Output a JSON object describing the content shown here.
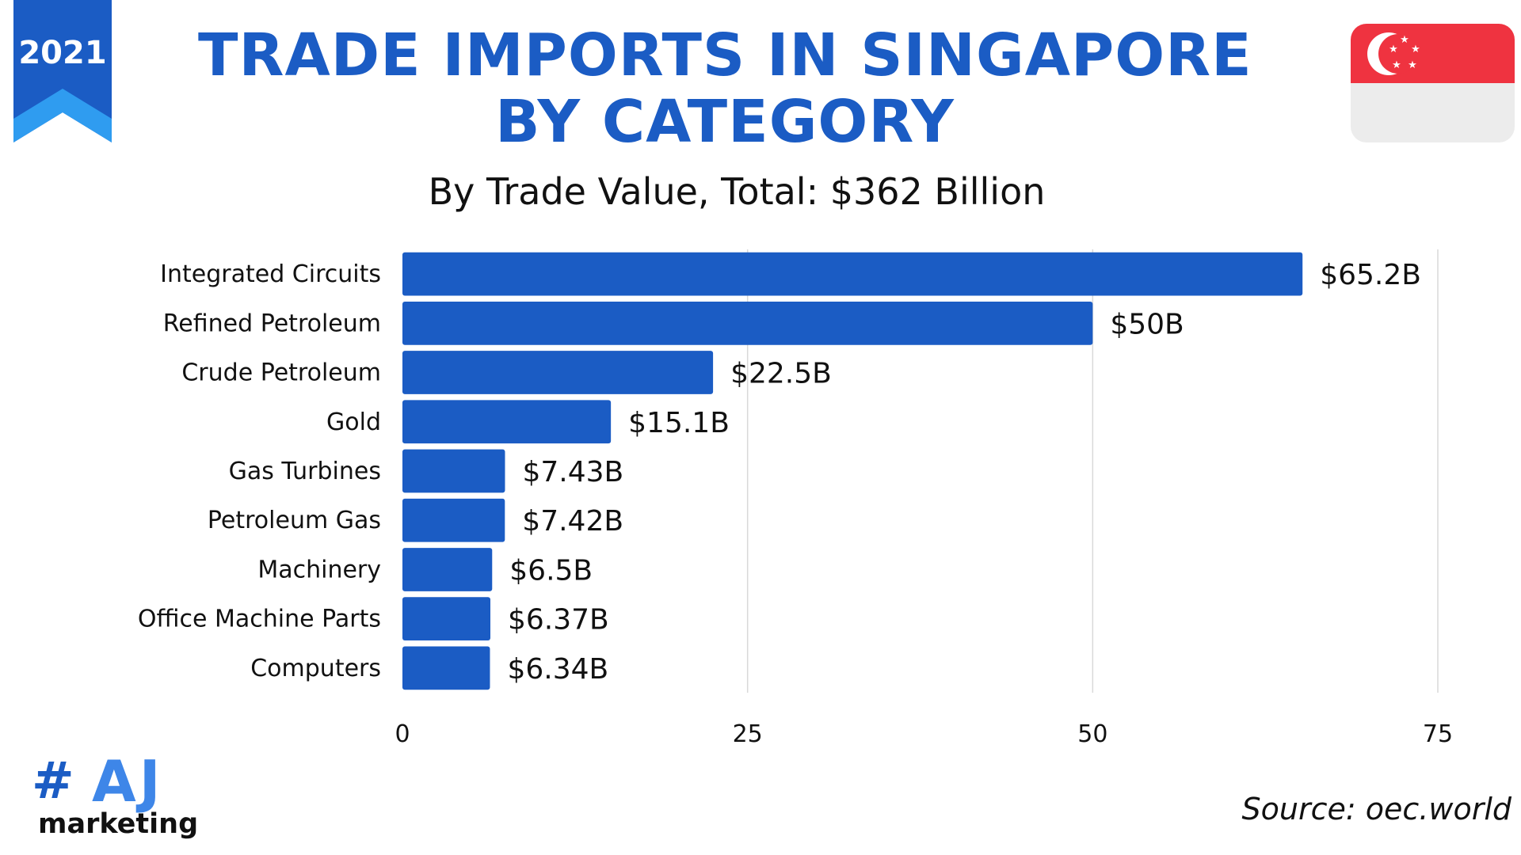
{
  "badge": {
    "year": "2021"
  },
  "header": {
    "title_line1": "TRADE IMPORTS IN SINGAPORE",
    "title_line2": "BY CATEGORY",
    "subtitle": "By Trade Value, Total: $362 Billion"
  },
  "flag": {
    "name": "singapore-flag-icon",
    "colors": {
      "red": "#ef3340",
      "white": "#ececec"
    }
  },
  "colors": {
    "bar": "#1b5cc4",
    "title": "#1b5cc4",
    "grid": "#d9d9d9",
    "ribbon_dark": "#1b5cc4",
    "ribbon_light": "#2f9cf0"
  },
  "chart_data": {
    "type": "bar",
    "orientation": "horizontal",
    "categories": [
      "Integrated Circuits",
      "Refined Petroleum",
      "Crude Petroleum",
      "Gold",
      "Gas Turbines",
      "Petroleum Gas",
      "Machinery",
      "Office Machine Parts",
      "Computers"
    ],
    "values": [
      65.2,
      50,
      22.5,
      15.1,
      7.43,
      7.42,
      6.5,
      6.37,
      6.34
    ],
    "value_labels": [
      "$65.2B",
      "$50B",
      "$22.5B",
      "$15.1B",
      "$7.43B",
      "$7.42B",
      "$6.5B",
      "$6.37B",
      "$6.34B"
    ],
    "xlim": [
      0,
      75
    ],
    "xticks": [
      0,
      25,
      50,
      75
    ],
    "xtick_labels": [
      "0",
      "25",
      "50",
      "75"
    ],
    "grid": true,
    "xlabel": "",
    "ylabel": ""
  },
  "footer": {
    "source": "Source:  oec.world",
    "logo_hash": "#",
    "logo_letters": "AJ",
    "logo_sub": "marketing"
  }
}
